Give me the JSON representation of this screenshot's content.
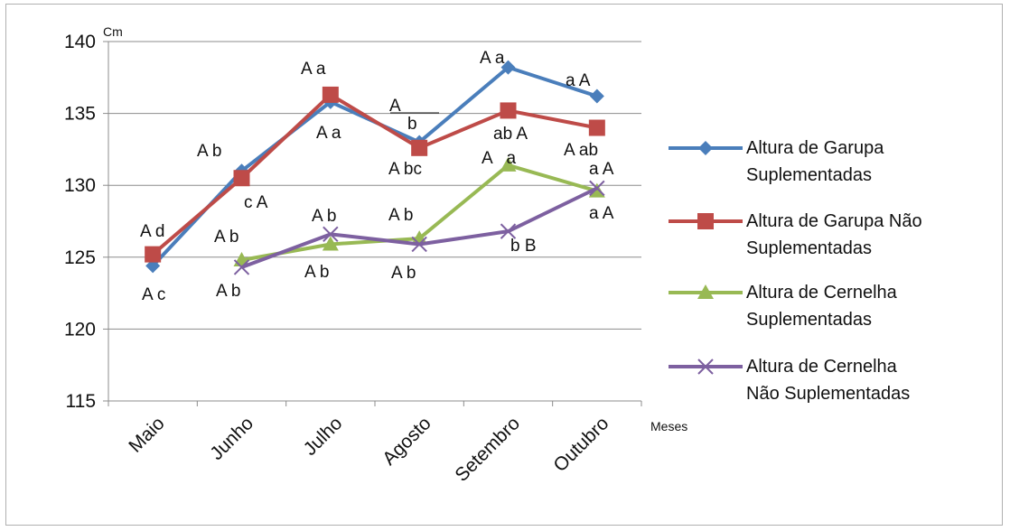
{
  "chart_data": {
    "type": "line",
    "title": "",
    "ylabel": "Cm",
    "xlabel": "Meses",
    "ylim": [
      115,
      140
    ],
    "yticks": [
      115,
      120,
      125,
      130,
      135,
      140
    ],
    "grid": true,
    "legend_position": "right",
    "categories": [
      "Maio",
      "Junho",
      "Julho",
      "Agosto",
      "Setembro",
      "Outubro"
    ],
    "series": [
      {
        "name_lines": [
          "Altura de Garupa",
          "Suplementadas"
        ],
        "color": "#4a7ebb",
        "marker": "diamond",
        "values": [
          124.4,
          131.0,
          135.8,
          133.0,
          138.2,
          136.2
        ]
      },
      {
        "name_lines": [
          "Altura de Garupa Não",
          "Suplementadas"
        ],
        "color": "#be4b48",
        "marker": "square",
        "values": [
          125.2,
          130.5,
          136.3,
          132.6,
          135.2,
          134.0
        ]
      },
      {
        "name_lines": [
          "Altura de Cernelha",
          "Suplementadas"
        ],
        "color": "#98b954",
        "marker": "triangle",
        "values": [
          null,
          124.8,
          125.9,
          126.3,
          131.4,
          129.6
        ]
      },
      {
        "name_lines": [
          "Altura de Cernelha",
          "Não Suplementadas"
        ],
        "color": "#7d60a0",
        "marker": "x",
        "values": [
          null,
          124.3,
          126.6,
          125.9,
          126.8,
          129.8
        ]
      }
    ],
    "annotations": [
      {
        "category": "Maio",
        "text": "A d",
        "side": "above"
      },
      {
        "category": "Maio",
        "text": "A c",
        "side": "below"
      },
      {
        "category": "Junho",
        "text": "A b",
        "side": "above"
      },
      {
        "category": "Junho",
        "text": "c A",
        "side": "below"
      },
      {
        "category": "Junho",
        "text": "A b",
        "side": "above"
      },
      {
        "category": "Junho",
        "text": "A b",
        "side": "below"
      },
      {
        "category": "Julho",
        "text": "A a",
        "side": "above"
      },
      {
        "category": "Julho",
        "text": "A a",
        "side": "below"
      },
      {
        "category": "Julho",
        "text": "A b",
        "side": "above"
      },
      {
        "category": "Julho",
        "text": "A b",
        "side": "below"
      },
      {
        "category": "Agosto",
        "text": "A",
        "side": "above"
      },
      {
        "category": "Agosto",
        "text": "b",
        "side": "above"
      },
      {
        "category": "Agosto",
        "text": "A bc",
        "side": "below"
      },
      {
        "category": "Agosto",
        "text": "A b",
        "side": "above"
      },
      {
        "category": "Agosto",
        "text": "A b",
        "side": "below"
      },
      {
        "category": "Setembro",
        "text": "A a",
        "side": "above"
      },
      {
        "category": "Setembro",
        "text": "ab A",
        "side": "below"
      },
      {
        "category": "Setembro",
        "text": "A   a",
        "side": "above"
      },
      {
        "category": "Setembro",
        "text": "b B",
        "side": "below"
      },
      {
        "category": "Outubro",
        "text": "a A",
        "side": "above"
      },
      {
        "category": "Outubro",
        "text": "A ab",
        "side": "below"
      },
      {
        "category": "Outubro",
        "text": "a A",
        "side": "above"
      },
      {
        "category": "Outubro",
        "text": "a A",
        "side": "below"
      }
    ]
  }
}
